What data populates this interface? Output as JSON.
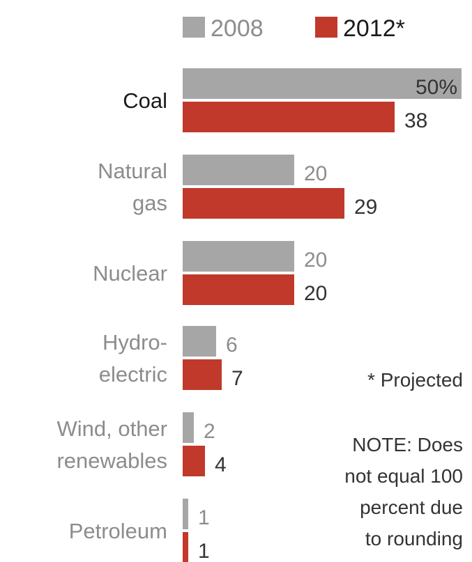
{
  "chart_data": {
    "type": "bar",
    "orientation": "horizontal",
    "categories": [
      [
        "Coal"
      ],
      [
        "Natural",
        "gas"
      ],
      [
        "Nuclear"
      ],
      [
        "Hydro-",
        "electric"
      ],
      [
        "Wind, other",
        "renewables"
      ],
      [
        "Petroleum"
      ]
    ],
    "highlight_category": 0,
    "series": [
      {
        "name": "2008",
        "color": "#a6a6a6",
        "values": [
          50,
          20,
          20,
          6,
          2,
          1
        ],
        "labels": [
          "50%",
          "20",
          "20",
          "6",
          "2",
          "1"
        ]
      },
      {
        "name": "2012*",
        "color": "#c0392b",
        "values": [
          38,
          29,
          20,
          7,
          4,
          1
        ],
        "labels": [
          "38",
          "29",
          "20",
          "7",
          "4",
          "1"
        ]
      }
    ],
    "xlim": [
      0,
      50
    ],
    "legend": "top",
    "grid": false,
    "annotations": [
      [
        "* Projected"
      ],
      [
        "NOTE: Does",
        "not equal 100",
        "percent due",
        "to rounding"
      ]
    ]
  },
  "colors": {
    "label_muted": "#8c8c8c",
    "label_strong": "#1a1a1a",
    "value_2008": "#8c8c8c",
    "value_2012": "#333333",
    "note_text": "#333333"
  }
}
